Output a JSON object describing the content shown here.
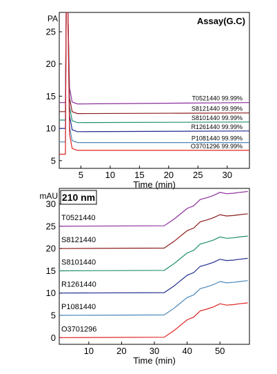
{
  "chart_data": [
    {
      "type": "line",
      "title": "Assay(G.C)",
      "y_unit_label": "PA",
      "xlabel": "Time (min)",
      "xlim": [
        1.3,
        33.8
      ],
      "ylim": [
        3.8,
        28
      ],
      "x_ticks": [
        5,
        10,
        15,
        20,
        25,
        30
      ],
      "y_ticks": [
        5,
        10,
        15,
        20,
        25
      ],
      "peak_time": 2.6,
      "series": [
        {
          "name": "T0521440",
          "label": "T0521440  99.99%",
          "color": "#8b2c9b",
          "baseline": 13.8,
          "pre": 14.0,
          "end": 14.0
        },
        {
          "name": "S8121440",
          "label": "S8121440  99.99%",
          "color": "#8b1a1a",
          "baseline": 12.3,
          "pre": 12.6,
          "end": 12.4
        },
        {
          "name": "S8101440",
          "label": "S8101440  99.99%",
          "color": "#1e8e6e",
          "baseline": 10.9,
          "pre": 11.3,
          "end": 11.0
        },
        {
          "name": "R1261440",
          "label": "R1261440  99.99%",
          "color": "#1f2a8f",
          "baseline": 9.5,
          "pre": 10.0,
          "end": 9.6
        },
        {
          "name": "P1081440",
          "label": "P1081440  99.99%",
          "color": "#4a86b8",
          "baseline": 7.8,
          "pre": 7.9,
          "end": 7.8
        },
        {
          "name": "O3701296",
          "label": "O3701296  99.99%",
          "color": "#e02020",
          "baseline": 6.6,
          "pre": 6.0,
          "end": 6.6
        }
      ]
    },
    {
      "type": "line",
      "title": "210 nm",
      "y_unit_label": "mAU",
      "xlabel": "Time (min)",
      "xlim": [
        1,
        59
      ],
      "ylim": [
        -1.5,
        33.5
      ],
      "x_ticks": [
        10,
        20,
        30,
        40,
        50
      ],
      "y_ticks": [
        0,
        5,
        10,
        15,
        20,
        25,
        30
      ],
      "series": [
        {
          "name": "T0521440",
          "label": "T0521440",
          "color": "#8b2c9b",
          "offset": 25
        },
        {
          "name": "S8121440",
          "label": "S8121440",
          "color": "#8b1a1a",
          "offset": 20
        },
        {
          "name": "S8101440",
          "label": "S8101440",
          "color": "#1e8e6e",
          "offset": 15
        },
        {
          "name": "R1261440",
          "label": "R1261440",
          "color": "#1f2a8f",
          "offset": 10
        },
        {
          "name": "P1081440",
          "label": "P1081440",
          "color": "#4a86b8",
          "offset": 5
        },
        {
          "name": "O3701296",
          "label": "O3701296",
          "color": "#e02020",
          "offset": 0
        }
      ],
      "profile": {
        "x": [
          1,
          33,
          36,
          40,
          42,
          44,
          46,
          48,
          50,
          52,
          54,
          56,
          58.5
        ],
        "y": [
          0,
          0.1,
          1.6,
          4.0,
          4.6,
          6.0,
          6.4,
          6.9,
          7.6,
          7.3,
          7.4,
          7.6,
          7.8
        ]
      }
    }
  ]
}
